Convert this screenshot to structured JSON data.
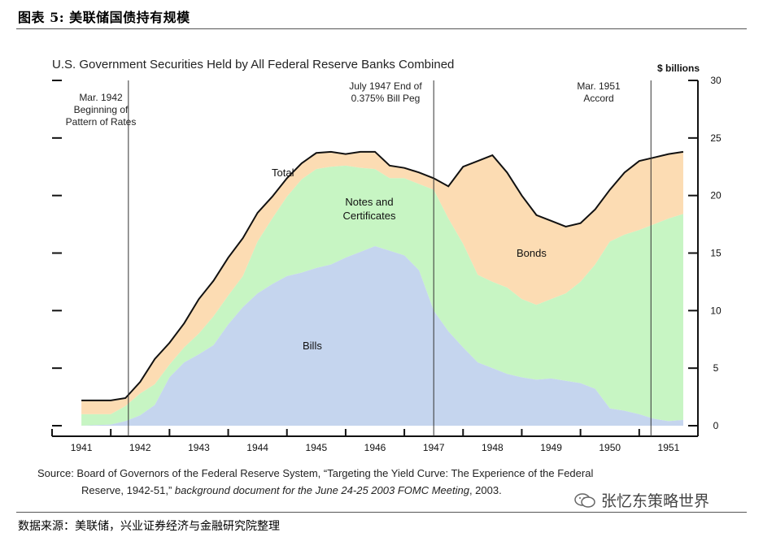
{
  "figure_title": "图表 5:  美联储国债持有规模",
  "source": {
    "line1": "Source: Board of Governors of the Federal Reserve System, “Targeting the Yield Curve: The Experience of the Federal",
    "line2_normal": "Reserve, 1942-51,” ",
    "line2_italic": "background document for the June 24-25 2003 FOMC Meeting",
    "line2_end": ", 2003."
  },
  "footer": "数据来源：美联储，兴业证券经济与金融研究院整理",
  "watermark": "张忆东策略世界",
  "colors": {
    "bills": "#c5d5ee",
    "notes": "#c7f5c3",
    "bonds": "#fcdcb3",
    "line": "#111111"
  },
  "chart_data": {
    "type": "area",
    "title": "U.S. Government Securities Held by All Federal Reserve Banks Combined",
    "ylabel": "$ billions",
    "ylim": [
      0,
      30
    ],
    "yticks": [
      0,
      5,
      10,
      15,
      20,
      25,
      30
    ],
    "xlim": [
      1941.0,
      1952.0
    ],
    "xtick_labels": [
      "1941",
      "1942",
      "1943",
      "1944",
      "1945",
      "1946",
      "1947",
      "1948",
      "1949",
      "1950",
      "1951"
    ],
    "x": [
      1941.0,
      1941.5,
      1942.0,
      1942.25,
      1942.5,
      1942.75,
      1943.0,
      1943.25,
      1943.5,
      1943.75,
      1944.0,
      1944.25,
      1944.5,
      1944.75,
      1945.0,
      1945.25,
      1945.5,
      1945.75,
      1946.0,
      1946.25,
      1946.5,
      1946.75,
      1947.0,
      1947.25,
      1947.5,
      1947.75,
      1948.0,
      1948.25,
      1948.5,
      1948.75,
      1949.0,
      1949.25,
      1949.5,
      1949.75,
      1950.0,
      1950.25,
      1950.5,
      1950.75,
      1951.0,
      1951.25,
      1951.5,
      1951.75
    ],
    "series": [
      {
        "name": "Bills",
        "values": [
          0.0,
          0.0,
          0.1,
          0.4,
          0.9,
          1.8,
          4.2,
          5.5,
          6.2,
          7.0,
          8.8,
          10.3,
          11.5,
          12.3,
          13.0,
          13.3,
          13.7,
          14.0,
          14.6,
          15.1,
          15.6,
          15.2,
          14.8,
          13.5,
          10.0,
          8.2,
          6.8,
          5.5,
          5.0,
          4.5,
          4.2,
          4.0,
          4.1,
          3.9,
          3.7,
          3.2,
          1.5,
          1.3,
          1.0,
          0.6,
          0.4,
          0.5
        ]
      },
      {
        "name": "Notes and Certificates",
        "values": [
          1.0,
          1.0,
          1.0,
          1.7,
          2.8,
          3.6,
          5.3,
          6.8,
          8.0,
          9.5,
          11.3,
          13.0,
          16.0,
          18.0,
          19.9,
          21.4,
          22.3,
          22.5,
          22.6,
          22.4,
          22.3,
          21.5,
          21.5,
          21.0,
          20.5,
          18.0,
          15.8,
          13.1,
          12.5,
          12.0,
          11.0,
          10.5,
          11.0,
          11.5,
          12.5,
          14.0,
          16.0,
          16.6,
          17.0,
          17.5,
          18.0,
          18.4
        ]
      },
      {
        "name": "Total",
        "values": [
          2.2,
          2.2,
          2.2,
          2.4,
          3.8,
          5.8,
          7.2,
          8.9,
          11.0,
          12.6,
          14.6,
          16.3,
          18.5,
          19.9,
          21.5,
          22.8,
          23.7,
          23.8,
          23.6,
          23.8,
          23.8,
          22.6,
          22.4,
          22.0,
          21.5,
          20.8,
          22.5,
          23.0,
          23.5,
          22.0,
          20.0,
          18.3,
          17.8,
          17.3,
          17.6,
          18.8,
          20.5,
          22.0,
          23.0,
          23.3,
          23.6,
          23.8
        ]
      }
    ],
    "fill_labels": [
      {
        "name": "Bonds",
        "label": "Bonds"
      },
      {
        "name": "Notes and Certificates",
        "label": "Notes and Certificates"
      },
      {
        "name": "Bills",
        "label": "Bills"
      }
    ],
    "annotations": [
      {
        "x": 1942.3,
        "text": "Mar. 1942 Beginning of Pattern of Rates"
      },
      {
        "x": 1947.5,
        "text": "July 1947 End of 0.375% Bill Peg"
      },
      {
        "x": 1951.2,
        "text": "Mar. 1951 Accord"
      }
    ],
    "grid": false,
    "legend": "none"
  }
}
